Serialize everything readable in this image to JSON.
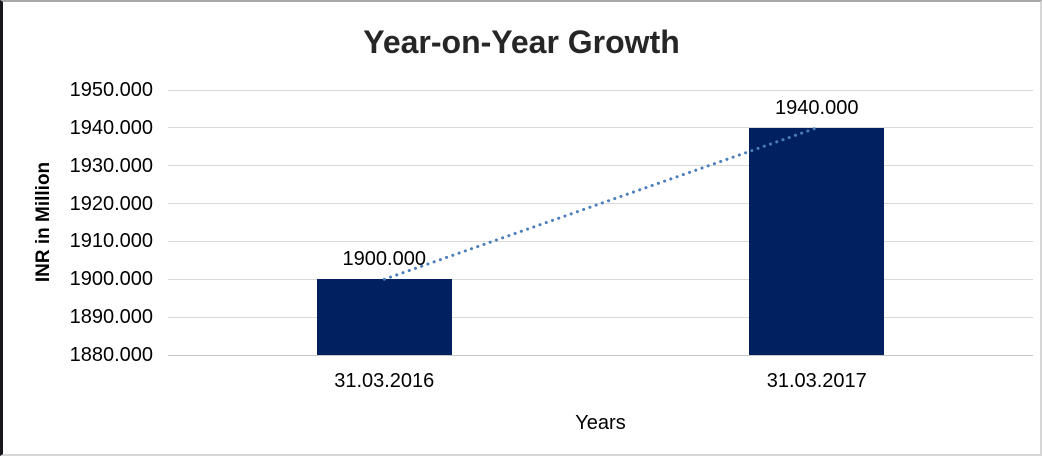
{
  "chart_data": {
    "type": "bar",
    "title": "Year-on-Year Growth",
    "xlabel": "Years",
    "ylabel": "INR in Million",
    "categories": [
      "31.03.2016",
      "31.03.2017"
    ],
    "values": [
      1900.0,
      1940.0
    ],
    "data_labels": [
      "1900.000",
      "1940.000"
    ],
    "ylim": [
      1880,
      1950
    ],
    "ytick_step": 10,
    "ytick_labels": [
      "1950.000",
      "1940.000",
      "1930.000",
      "1920.000",
      "1910.000",
      "1900.000",
      "1890.000",
      "1880.000"
    ],
    "grid": true,
    "legend": "none",
    "bar_color": "#002060",
    "gridline_color": "#d9d9d9",
    "title_color": "#262626",
    "trendline": {
      "kind": "linear",
      "style": "dotted",
      "color": "#4a7ebb",
      "from_value": 1900.0,
      "to_value": 1940.0
    }
  }
}
